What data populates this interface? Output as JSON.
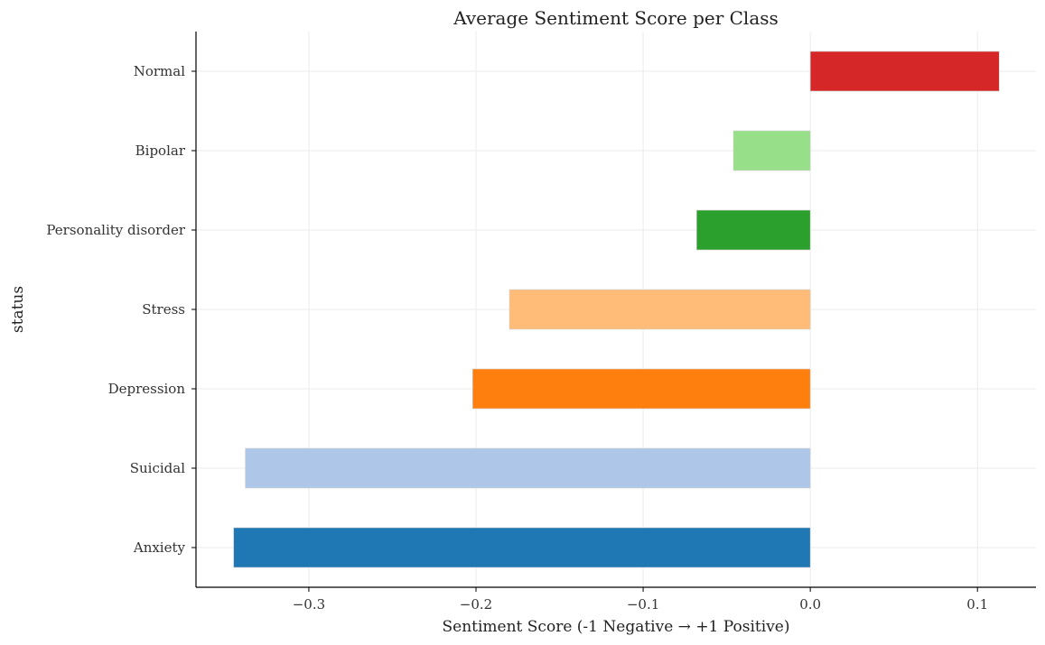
{
  "chart_data": {
    "type": "bar",
    "orientation": "horizontal",
    "title": "Average Sentiment Score per Class",
    "xlabel": "Sentiment Score (-1 Negative → +1 Positive)",
    "ylabel": "status",
    "xlim": [
      -0.3675,
      0.135
    ],
    "xticks": [
      -0.3,
      -0.2,
      -0.1,
      0.0,
      0.1
    ],
    "xtick_labels": [
      "−0.3",
      "−0.2",
      "−0.1",
      "0.0",
      "0.1"
    ],
    "grid": true,
    "legend": "none",
    "categories": [
      "Anxiety",
      "Suicidal",
      "Depression",
      "Stress",
      "Personality disorder",
      "Bipolar",
      "Normal"
    ],
    "values": [
      -0.345,
      -0.338,
      -0.202,
      -0.18,
      -0.068,
      -0.046,
      0.113
    ],
    "colors": [
      "#1f77b4",
      "#aec7e8",
      "#ff7f0e",
      "#ffbb78",
      "#2ca02c",
      "#98df8a",
      "#d62728"
    ]
  }
}
